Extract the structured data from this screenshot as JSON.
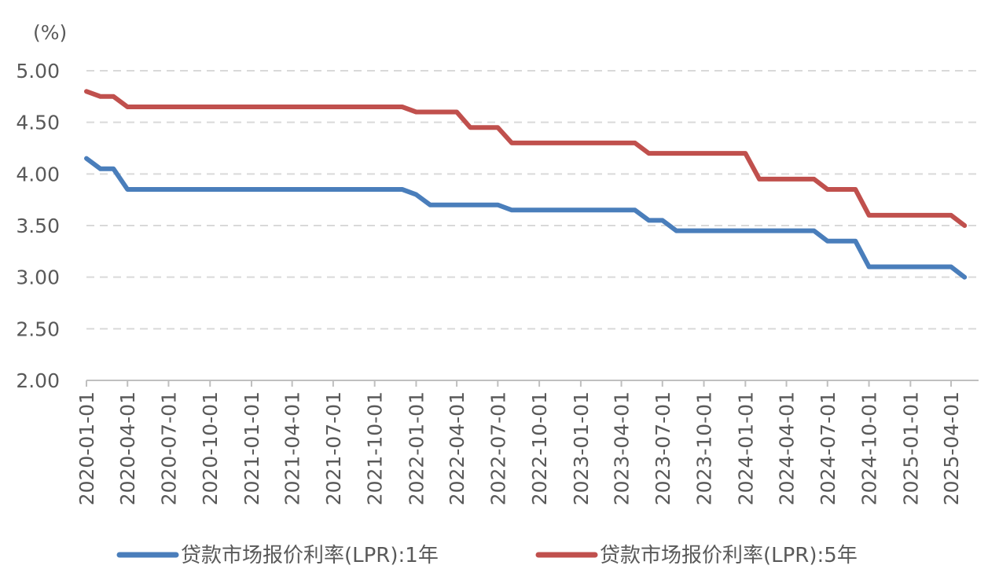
{
  "chart_data": {
    "type": "line",
    "y_unit_label": "(%)",
    "ylim": [
      2.0,
      5.0
    ],
    "y_ticks": [
      "2.00",
      "2.50",
      "3.00",
      "3.50",
      "4.00",
      "4.50",
      "5.00"
    ],
    "x_tick_labels": [
      "2020-01-01",
      "2020-04-01",
      "2020-07-01",
      "2020-10-01",
      "2021-01-01",
      "2021-04-01",
      "2021-07-01",
      "2021-10-01",
      "2022-01-01",
      "2022-04-01",
      "2022-07-01",
      "2022-10-01",
      "2023-01-01",
      "2023-04-01",
      "2023-07-01",
      "2023-10-01",
      "2024-01-01",
      "2024-04-01",
      "2024-07-01",
      "2024-10-01",
      "2025-01-01",
      "2025-04-01"
    ],
    "grid": true,
    "legend_position": "bottom",
    "x_range": [
      "2020-01-01",
      "2025-06-01"
    ],
    "series": [
      {
        "name": "贷款市场报价利率(LPR):1年",
        "color": "#4a7ebb",
        "points": [
          [
            "2020-01-01",
            4.15
          ],
          [
            "2020-02-01",
            4.05
          ],
          [
            "2020-03-01",
            4.05
          ],
          [
            "2020-04-01",
            3.85
          ],
          [
            "2020-05-01",
            3.85
          ],
          [
            "2021-12-01",
            3.85
          ],
          [
            "2022-01-01",
            3.8
          ],
          [
            "2022-02-01",
            3.7
          ],
          [
            "2022-07-01",
            3.7
          ],
          [
            "2022-08-01",
            3.65
          ],
          [
            "2023-05-01",
            3.65
          ],
          [
            "2023-06-01",
            3.55
          ],
          [
            "2023-07-01",
            3.55
          ],
          [
            "2023-08-01",
            3.45
          ],
          [
            "2024-06-01",
            3.45
          ],
          [
            "2024-07-01",
            3.35
          ],
          [
            "2024-09-01",
            3.35
          ],
          [
            "2024-10-01",
            3.1
          ],
          [
            "2025-04-01",
            3.1
          ],
          [
            "2025-05-01",
            3.0
          ]
        ]
      },
      {
        "name": "贷款市场报价利率(LPR):5年",
        "color": "#c0504d",
        "points": [
          [
            "2020-01-01",
            4.8
          ],
          [
            "2020-02-01",
            4.75
          ],
          [
            "2020-03-01",
            4.75
          ],
          [
            "2020-04-01",
            4.65
          ],
          [
            "2020-05-01",
            4.65
          ],
          [
            "2021-12-01",
            4.65
          ],
          [
            "2022-01-01",
            4.6
          ],
          [
            "2022-04-01",
            4.6
          ],
          [
            "2022-05-01",
            4.45
          ],
          [
            "2022-07-01",
            4.45
          ],
          [
            "2022-08-01",
            4.3
          ],
          [
            "2023-05-01",
            4.3
          ],
          [
            "2023-06-01",
            4.2
          ],
          [
            "2023-12-01",
            4.2
          ],
          [
            "2024-01-01",
            4.2
          ],
          [
            "2024-02-01",
            3.95
          ],
          [
            "2024-06-01",
            3.95
          ],
          [
            "2024-07-01",
            3.85
          ],
          [
            "2024-09-01",
            3.85
          ],
          [
            "2024-10-01",
            3.6
          ],
          [
            "2025-04-01",
            3.6
          ],
          [
            "2025-05-01",
            3.5
          ]
        ]
      }
    ]
  }
}
